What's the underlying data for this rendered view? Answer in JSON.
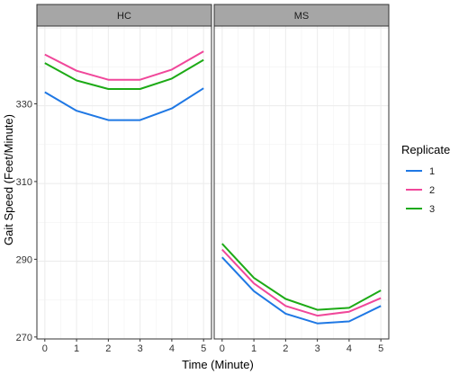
{
  "chart_data": {
    "type": "line",
    "facets": [
      "HC",
      "MS"
    ],
    "xlabel": "Time (Minute)",
    "ylabel": "Gait Speed (Feet/Minute)",
    "x": [
      0,
      1,
      2,
      3,
      4,
      5
    ],
    "xlim": [
      -0.25,
      5.25
    ],
    "ylim": [
      269.5,
      350
    ],
    "y_ticks": [
      270,
      290,
      310,
      330
    ],
    "x_ticks": [
      0,
      1,
      2,
      3,
      4,
      5
    ],
    "grid": true,
    "legend": {
      "title": "Replicate",
      "position": "right",
      "entries": [
        {
          "label": "1",
          "color": "#1F78E4"
        },
        {
          "label": "2",
          "color": "#F0479A"
        },
        {
          "label": "3",
          "color": "#1DAA16"
        }
      ]
    },
    "series": [
      {
        "facet": "HC",
        "replicate": "1",
        "values": [
          333.0,
          328.2,
          325.8,
          325.8,
          328.8,
          334.0
        ]
      },
      {
        "facet": "HC",
        "replicate": "2",
        "values": [
          342.7,
          338.5,
          336.2,
          336.2,
          338.8,
          343.5
        ]
      },
      {
        "facet": "HC",
        "replicate": "3",
        "values": [
          340.5,
          336.0,
          333.8,
          333.8,
          336.5,
          341.3
        ]
      },
      {
        "facet": "MS",
        "replicate": "1",
        "values": [
          290.5,
          281.8,
          276.0,
          273.5,
          274.0,
          278.0
        ]
      },
      {
        "facet": "MS",
        "replicate": "2",
        "values": [
          292.5,
          283.8,
          278.0,
          275.5,
          276.5,
          280.0
        ]
      },
      {
        "facet": "MS",
        "replicate": "3",
        "values": [
          294.0,
          285.2,
          279.8,
          277.0,
          277.5,
          282.0
        ]
      }
    ]
  }
}
